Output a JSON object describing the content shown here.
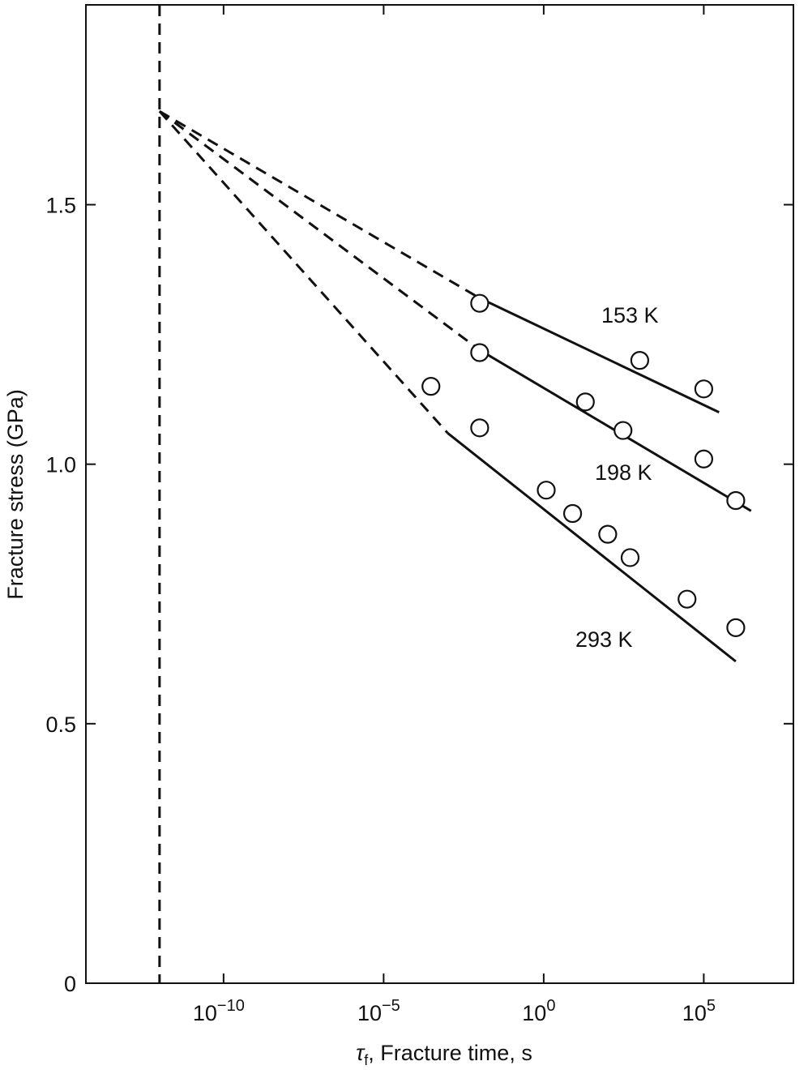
{
  "chart_data": {
    "type": "line",
    "xlabel_symbol": "τ",
    "xlabel_subscript": "f",
    "xlabel_rest": ", Fracture time, s",
    "ylabel": "Fracture stress (GPa)",
    "x_scale": "log",
    "x_log10_range": [
      -14.3,
      7.8
    ],
    "ylim": [
      0,
      1.885
    ],
    "x_ticks": [
      {
        "exp": -10,
        "base": "10",
        "power": "−10"
      },
      {
        "exp": -5,
        "base": "10",
        "power": "−5"
      },
      {
        "exp": 0,
        "base": "10",
        "power": "0"
      },
      {
        "exp": 5,
        "base": "10",
        "power": "5"
      }
    ],
    "y_ticks": [
      {
        "value": 0,
        "label": "0"
      },
      {
        "value": 0.5,
        "label": "0.5"
      },
      {
        "value": 1.0,
        "label": "1.0"
      },
      {
        "value": 1.5,
        "label": "1.5"
      }
    ],
    "vertical_dashed_line_x": 1e-12,
    "origin_point": {
      "x": 1e-12,
      "y": 1.68
    },
    "series": [
      {
        "name": "153 K",
        "dash_to": {
          "x": 0.01,
          "y": 1.32
        },
        "fit_start": {
          "x": 0.01,
          "y": 1.32
        },
        "fit_end": {
          "x": 300000.0,
          "y": 1.1
        },
        "points": [
          {
            "x": 0.01,
            "y": 1.31
          },
          {
            "x": 1000,
            "y": 1.2
          },
          {
            "x": 100000,
            "y": 1.145
          }
        ]
      },
      {
        "name": "198 K",
        "dash_to": {
          "x": 0.01,
          "y": 1.22
        },
        "fit_start": {
          "x": 0.01,
          "y": 1.22
        },
        "fit_end": {
          "x": 3000000.0,
          "y": 0.91
        },
        "points": [
          {
            "x": 0.01,
            "y": 1.215
          },
          {
            "x": 20,
            "y": 1.12
          },
          {
            "x": 300,
            "y": 1.065
          },
          {
            "x": 100000,
            "y": 1.01
          },
          {
            "x": 1000000,
            "y": 0.93
          }
        ]
      },
      {
        "name": "293 K",
        "dash_to": {
          "x": 0.001,
          "y": 1.06
        },
        "fit_start": {
          "x": 0.001,
          "y": 1.06
        },
        "fit_end": {
          "x": 1000000.0,
          "y": 0.62
        },
        "points": [
          {
            "x": 0.0003,
            "y": 1.15
          },
          {
            "x": 0.01,
            "y": 1.07
          },
          {
            "x": 1.2,
            "y": 0.95
          },
          {
            "x": 8,
            "y": 0.905
          },
          {
            "x": 100,
            "y": 0.865
          },
          {
            "x": 500,
            "y": 0.82
          },
          {
            "x": 30000,
            "y": 0.74
          },
          {
            "x": 1000000,
            "y": 0.685
          }
        ]
      }
    ]
  }
}
